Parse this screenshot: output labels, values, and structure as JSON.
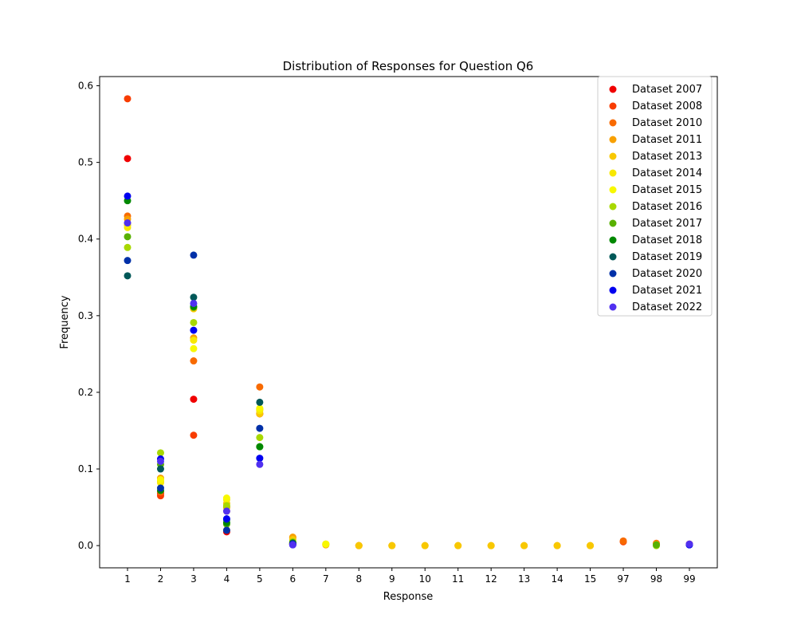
{
  "chart_data": {
    "type": "scatter",
    "title": "Distribution of Responses for Question Q6",
    "xlabel": "Response",
    "ylabel": "Frequency",
    "categories": [
      "1",
      "2",
      "3",
      "4",
      "5",
      "6",
      "7",
      "8",
      "9",
      "10",
      "11",
      "12",
      "13",
      "14",
      "15",
      "97",
      "98",
      "99"
    ],
    "yticks": [
      "0.0",
      "0.1",
      "0.2",
      "0.3",
      "0.4",
      "0.5",
      "0.6"
    ],
    "ylim": [
      -0.029,
      0.612
    ],
    "grid": false,
    "legend_position": "top-right",
    "series": [
      {
        "name": "Dataset 2007",
        "color": "#f00000",
        "points": [
          [
            "1",
            0.505
          ],
          [
            "2",
            0.068
          ],
          [
            "3",
            0.191
          ],
          [
            "4",
            0.018
          ],
          [
            "5",
            0.172
          ],
          [
            "6",
            0.002
          ],
          [
            "99",
            0.002
          ]
        ]
      },
      {
        "name": "Dataset 2008",
        "color": "#f83c00",
        "points": [
          [
            "1",
            0.583
          ],
          [
            "2",
            0.065
          ],
          [
            "3",
            0.144
          ],
          [
            "4",
            0.02
          ],
          [
            "5",
            0.172
          ],
          [
            "6",
            0.002
          ],
          [
            "8",
            0.0
          ],
          [
            "97",
            0.005
          ],
          [
            "98",
            0.002
          ]
        ]
      },
      {
        "name": "Dataset 2010",
        "color": "#f86a00",
        "points": [
          [
            "1",
            0.43
          ],
          [
            "2",
            0.07
          ],
          [
            "3",
            0.241
          ],
          [
            "4",
            0.045
          ],
          [
            "5",
            0.207
          ],
          [
            "6",
            0.01
          ],
          [
            "97",
            0.006
          ],
          [
            "98",
            0.003
          ]
        ]
      },
      {
        "name": "Dataset 2011",
        "color": "#f8a000",
        "points": [
          [
            "1",
            0.426
          ],
          [
            "2",
            0.088
          ],
          [
            "3",
            0.271
          ],
          [
            "4",
            0.05
          ],
          [
            "5",
            0.178
          ],
          [
            "6",
            0.011
          ],
          [
            "7",
            0.001
          ],
          [
            "8",
            0.0
          ],
          [
            "9",
            0.0
          ],
          [
            "10",
            0.0
          ],
          [
            "11",
            0.0
          ],
          [
            "12",
            0.0
          ],
          [
            "13",
            0.0
          ],
          [
            "14",
            0.0
          ],
          [
            "15",
            0.0
          ],
          [
            "98",
            0.002
          ]
        ]
      },
      {
        "name": "Dataset 2013",
        "color": "#f8c800",
        "points": [
          [
            "1",
            0.418
          ],
          [
            "2",
            0.084
          ],
          [
            "3",
            0.309
          ],
          [
            "4",
            0.055
          ],
          [
            "5",
            0.172
          ],
          [
            "6",
            0.008
          ],
          [
            "7",
            0.002
          ],
          [
            "8",
            0.0
          ],
          [
            "9",
            0.0
          ],
          [
            "10",
            0.0
          ],
          [
            "11",
            0.0
          ],
          [
            "12",
            0.0
          ],
          [
            "13",
            0.0
          ],
          [
            "14",
            0.0
          ],
          [
            "15",
            0.0
          ]
        ]
      },
      {
        "name": "Dataset 2014",
        "color": "#f8e800",
        "points": [
          [
            "1",
            0.415
          ],
          [
            "2",
            0.082
          ],
          [
            "3",
            0.268
          ],
          [
            "4",
            0.06
          ],
          [
            "5",
            0.176
          ],
          [
            "6",
            0.004
          ],
          [
            "7",
            0.002
          ]
        ]
      },
      {
        "name": "Dataset 2015",
        "color": "#f8f800",
        "points": [
          [
            "1",
            0.42
          ],
          [
            "2",
            0.086
          ],
          [
            "3",
            0.257
          ],
          [
            "4",
            0.062
          ],
          [
            "5",
            0.179
          ],
          [
            "6",
            0.004
          ],
          [
            "7",
            0.002
          ]
        ]
      },
      {
        "name": "Dataset 2016",
        "color": "#a8d800",
        "points": [
          [
            "1",
            0.389
          ],
          [
            "2",
            0.121
          ],
          [
            "3",
            0.291
          ],
          [
            "4",
            0.052
          ],
          [
            "5",
            0.141
          ],
          [
            "6",
            0.005
          ],
          [
            "98",
            0.0
          ]
        ]
      },
      {
        "name": "Dataset 2017",
        "color": "#58b000",
        "points": [
          [
            "1",
            0.403
          ],
          [
            "2",
            0.106
          ],
          [
            "3",
            0.311
          ],
          [
            "4",
            0.028
          ],
          [
            "5",
            0.129
          ],
          [
            "6",
            0.004
          ],
          [
            "98",
            0.001
          ]
        ]
      },
      {
        "name": "Dataset 2018",
        "color": "#008800",
        "points": [
          [
            "1",
            0.45
          ],
          [
            "2",
            0.072
          ],
          [
            "3",
            0.312
          ],
          [
            "4",
            0.03
          ],
          [
            "5",
            0.129
          ],
          [
            "6",
            0.003
          ]
        ]
      },
      {
        "name": "Dataset 2019",
        "color": "#005858",
        "points": [
          [
            "1",
            0.352
          ],
          [
            "2",
            0.1
          ],
          [
            "3",
            0.324
          ],
          [
            "4",
            0.034
          ],
          [
            "5",
            0.187
          ],
          [
            "6",
            0.003
          ]
        ]
      },
      {
        "name": "Dataset 2020",
        "color": "#0030a8",
        "points": [
          [
            "1",
            0.372
          ],
          [
            "2",
            0.075
          ],
          [
            "3",
            0.379
          ],
          [
            "4",
            0.02
          ],
          [
            "5",
            0.153
          ],
          [
            "6",
            0.002
          ],
          [
            "99",
            0.001
          ]
        ]
      },
      {
        "name": "Dataset 2021",
        "color": "#0000f0",
        "points": [
          [
            "1",
            0.456
          ],
          [
            "2",
            0.113
          ],
          [
            "3",
            0.281
          ],
          [
            "4",
            0.035
          ],
          [
            "5",
            0.114
          ],
          [
            "6",
            0.001
          ],
          [
            "99",
            0.001
          ]
        ]
      },
      {
        "name": "Dataset 2022",
        "color": "#5030f0",
        "points": [
          [
            "1",
            0.421
          ],
          [
            "2",
            0.11
          ],
          [
            "3",
            0.316
          ],
          [
            "4",
            0.045
          ],
          [
            "5",
            0.106
          ],
          [
            "6",
            0.001
          ],
          [
            "99",
            0.002
          ]
        ]
      }
    ]
  }
}
